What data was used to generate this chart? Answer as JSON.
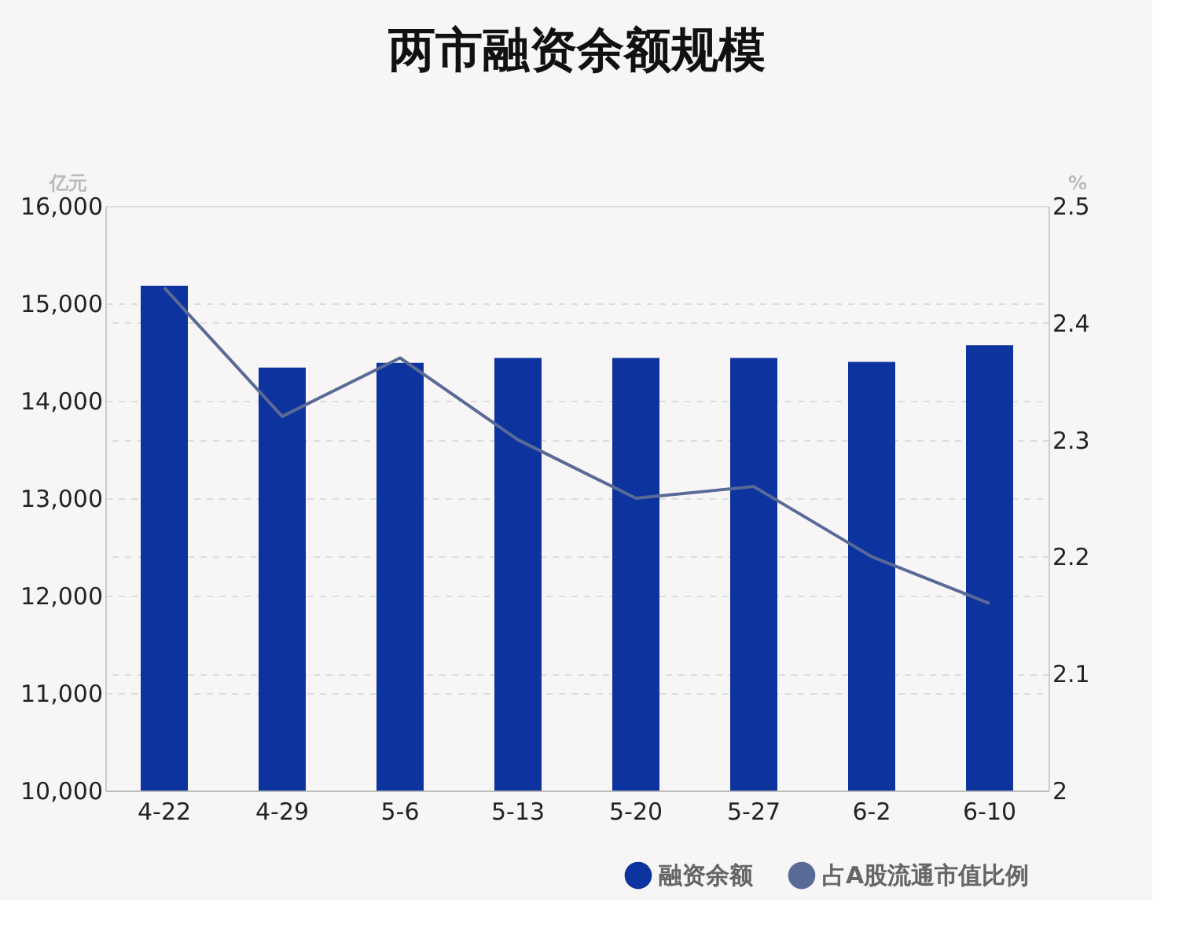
{
  "chart_data": {
    "type": "bar",
    "title": "两市融资余额规模",
    "ylabel": "亿元",
    "y2label": "%",
    "categories": [
      "4-22",
      "4-29",
      "5-6",
      "5-13",
      "5-20",
      "5-27",
      "6-2",
      "6-10"
    ],
    "series": [
      {
        "name": "融资余额",
        "color": "#0d349e",
        "values": [
          15180,
          14340,
          14390,
          14440,
          14440,
          14440,
          14400,
          14570
        ]
      },
      {
        "name": "占A股流通市值比例",
        "type": "line",
        "axis": "y2",
        "color": "#5a6a97",
        "values": [
          2.43,
          2.32,
          2.37,
          2.3,
          2.25,
          2.26,
          2.2,
          2.16
        ]
      }
    ],
    "ylim": [
      10000,
      16000
    ],
    "yticks": [
      {
        "value": 10000,
        "label": "10,000"
      },
      {
        "value": 11000,
        "label": "11,000"
      },
      {
        "value": 12000,
        "label": "12,000"
      },
      {
        "value": 13000,
        "label": "13,000"
      },
      {
        "value": 14000,
        "label": "14,000"
      },
      {
        "value": 15000,
        "label": "15,000"
      },
      {
        "value": 16000,
        "label": "16,000"
      }
    ],
    "y2lim": [
      2,
      2.5
    ],
    "y2ticks": [
      2,
      2.1,
      2.2,
      2.3,
      2.4,
      2.5
    ],
    "grid": true,
    "legend": "bottom right"
  }
}
